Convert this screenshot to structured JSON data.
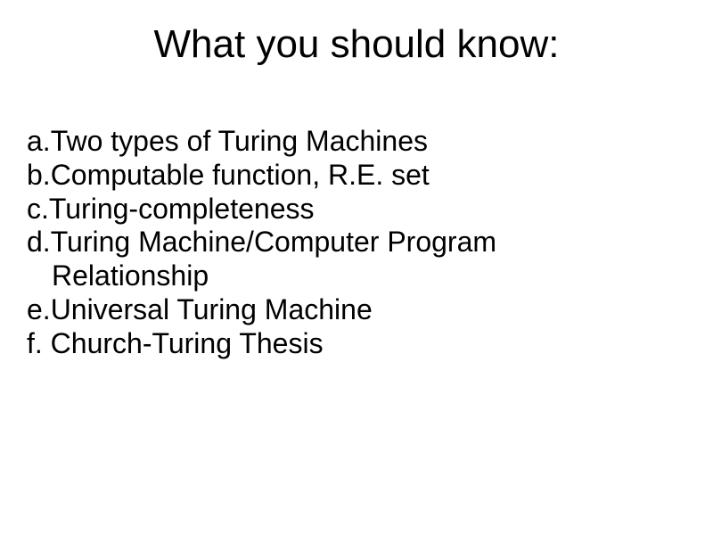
{
  "slide": {
    "title": "What you should know:",
    "title_fontsize": 44,
    "item_fontsize": 32,
    "background_color": "#ffffff",
    "text_color": "#000000",
    "font_family": "Arial",
    "items": [
      {
        "label": "a.",
        "text": "Two types of Turing Machines"
      },
      {
        "label": "b.",
        "text": "Computable function, R.E. set"
      },
      {
        "label": "c.",
        "text": "Turing-completeness"
      },
      {
        "label": "d.",
        "text": "Turing Machine/Computer Program"
      },
      {
        "label": "",
        "text": "Relationship",
        "indent": true
      },
      {
        "label": "e.",
        "text": "Universal Turing Machine"
      },
      {
        "label": "f.",
        "text": "Church-Turing Thesis"
      }
    ]
  }
}
